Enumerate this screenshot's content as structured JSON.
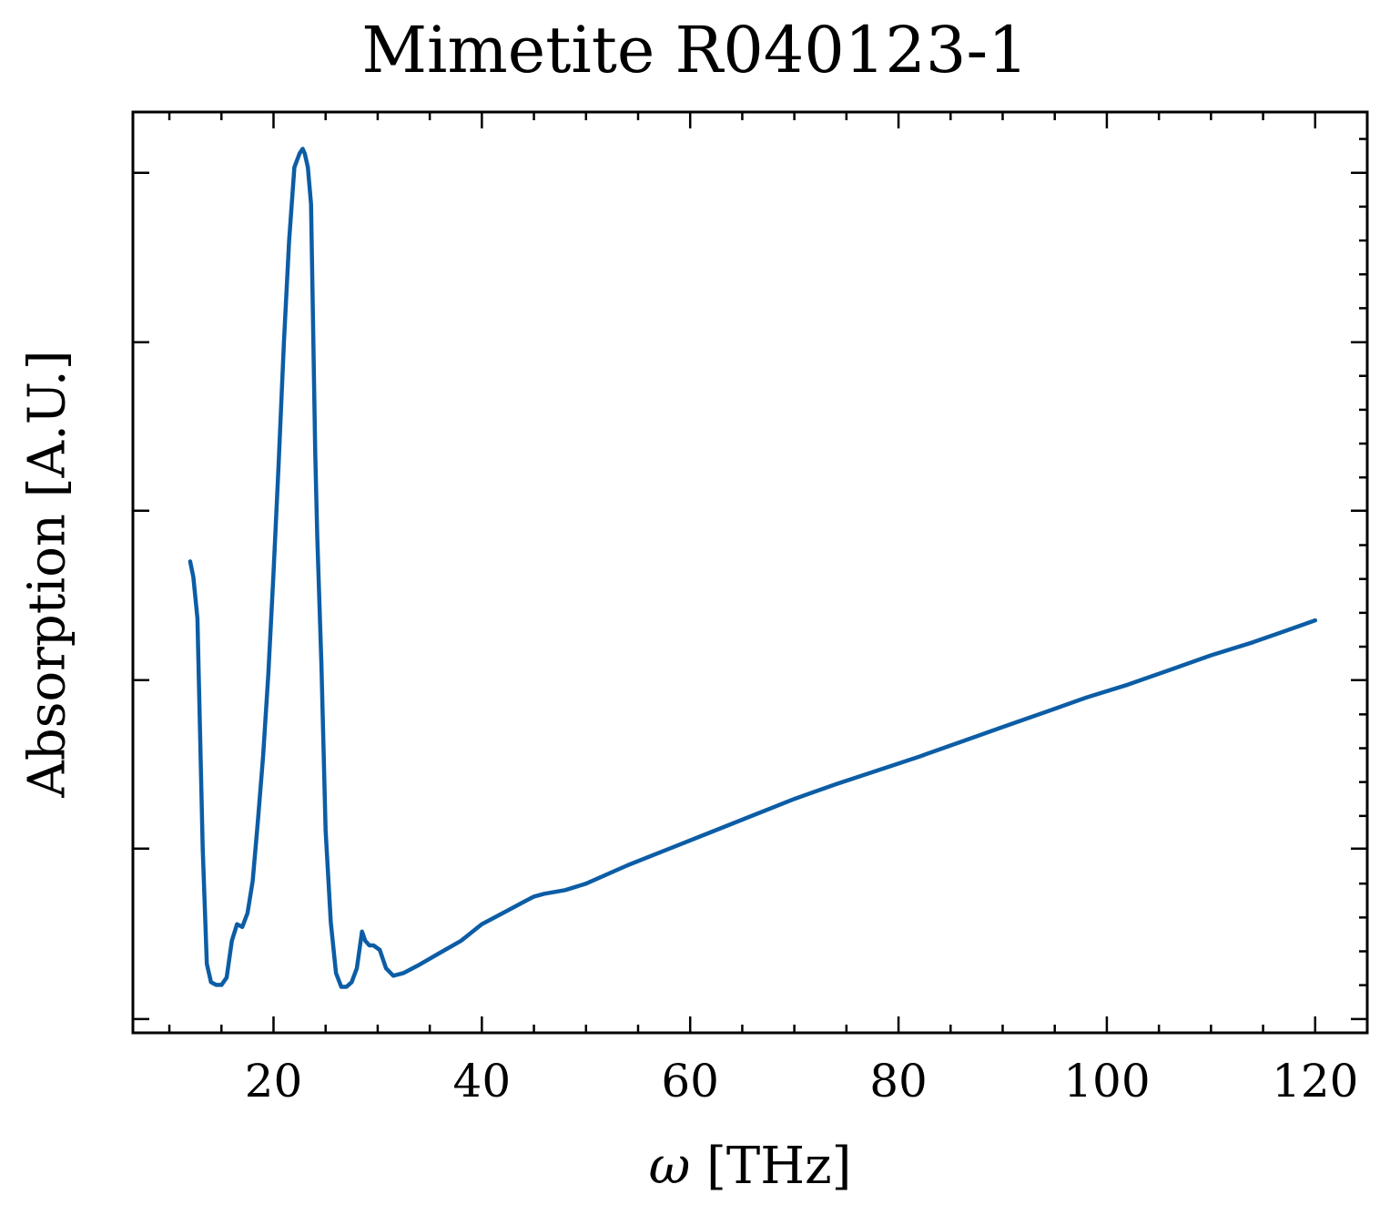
{
  "chart_data": {
    "type": "line",
    "title": "Mimetite R040123-1",
    "xlabel_symbol": "ω",
    "xlabel_unit": "[THz]",
    "ylabel": "Absorption [A.U.]",
    "xlim": [
      6.5,
      125
    ],
    "ylim": [
      0,
      1
    ],
    "x_ticks": [
      20,
      40,
      60,
      80,
      100,
      120
    ],
    "x_tick_labels": [
      "20",
      "40",
      "60",
      "80",
      "100",
      "120"
    ],
    "y_major_ticks": [
      0.015,
      0.2,
      0.383,
      0.567,
      0.75,
      0.934
    ],
    "y_tick_labels_shown": false,
    "grid": false,
    "line_color": "#0C5DA5",
    "series": [
      {
        "x": [
          12.0,
          12.3,
          12.7,
          13.2,
          13.6,
          14.0,
          14.5,
          15.0,
          15.5,
          16.0,
          16.5,
          17.0,
          17.5,
          18.0,
          18.5,
          19.0,
          19.5,
          20.0,
          20.5,
          21.0,
          21.5,
          22.0,
          22.5,
          22.8,
          23.0,
          23.3,
          23.6,
          24.0,
          24.2,
          24.6,
          25.0,
          25.5,
          26.0,
          26.5,
          27.0,
          27.5,
          28.0,
          28.5,
          28.8,
          29.2,
          29.6,
          30.2,
          30.8,
          31.5,
          32.5,
          34.0,
          36.0,
          38.0,
          40.0,
          42.0,
          44.0,
          45.0,
          46.0,
          48.0,
          50.0,
          54.0,
          58.0,
          62.0,
          66.0,
          70.0,
          74.0,
          78.0,
          82.0,
          86.0,
          90.0,
          94.0,
          98.0,
          102.0,
          106.0,
          110.0,
          114.0,
          118.0,
          120.0
        ],
        "y": [
          0.512,
          0.495,
          0.45,
          0.2,
          0.075,
          0.055,
          0.052,
          0.052,
          0.06,
          0.1,
          0.118,
          0.115,
          0.13,
          0.165,
          0.23,
          0.3,
          0.39,
          0.5,
          0.62,
          0.75,
          0.86,
          0.94,
          0.955,
          0.96,
          0.955,
          0.94,
          0.9,
          0.63,
          0.54,
          0.4,
          0.22,
          0.12,
          0.065,
          0.05,
          0.05,
          0.055,
          0.07,
          0.11,
          0.1,
          0.095,
          0.095,
          0.09,
          0.07,
          0.062,
          0.065,
          0.074,
          0.087,
          0.1,
          0.118,
          0.13,
          0.142,
          0.148,
          0.151,
          0.155,
          0.162,
          0.182,
          0.2,
          0.218,
          0.236,
          0.254,
          0.27,
          0.285,
          0.3,
          0.316,
          0.332,
          0.348,
          0.364,
          0.378,
          0.394,
          0.41,
          0.424,
          0.44,
          0.448
        ]
      }
    ]
  }
}
